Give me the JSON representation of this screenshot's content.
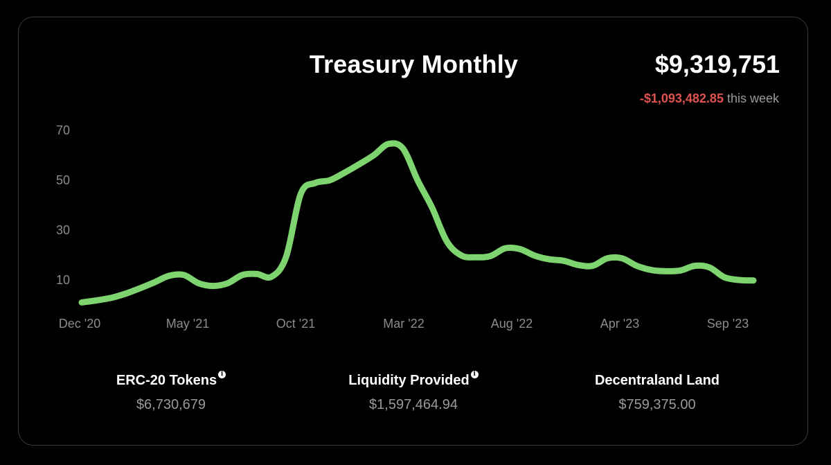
{
  "header": {
    "title": "Treasury Monthly",
    "total": "$9,319,751",
    "change_value": "-$1,093,482.85",
    "change_label": "this week"
  },
  "chart_data": {
    "type": "line",
    "title": "Treasury Monthly",
    "xlabel": "",
    "ylabel": "",
    "x_ticks": [
      "Dec '20",
      "May '21",
      "Oct '21",
      "Mar '22",
      "Aug '22",
      "Apr '23",
      "Sep '23"
    ],
    "y_ticks": [
      10,
      30,
      50,
      70
    ],
    "ylim": [
      0,
      75
    ],
    "grid": false,
    "line_color": "#7ed56f",
    "series": [
      {
        "values": [
          1,
          1.8,
          2.8,
          4.5,
          6.7,
          9.1,
          11.7,
          12.0,
          8.7,
          7.6,
          8.7,
          12.0,
          12.4,
          11.3,
          19.3,
          44.5,
          48.9,
          50.0,
          53.0,
          56.4,
          60.0,
          64.5,
          62.7,
          50.0,
          38.9,
          25.5,
          19.8,
          19.1,
          19.6,
          22.7,
          22.4,
          19.8,
          18.3,
          17.7,
          16.0,
          15.7,
          18.7,
          18.7,
          15.7,
          14.0,
          13.5,
          13.8,
          15.7,
          15.0,
          11.1,
          10.0,
          9.8
        ]
      }
    ],
    "stats": [
      {
        "label": "ERC-20 Tokens",
        "value": "$6,730,679",
        "info": true
      },
      {
        "label": "Liquidity Provided",
        "value": "$1,597,464.94",
        "info": true
      },
      {
        "label": "Decentraland Land",
        "value": "$759,375.00",
        "info": false
      }
    ],
    "icons": {
      "info": "info-icon"
    }
  }
}
